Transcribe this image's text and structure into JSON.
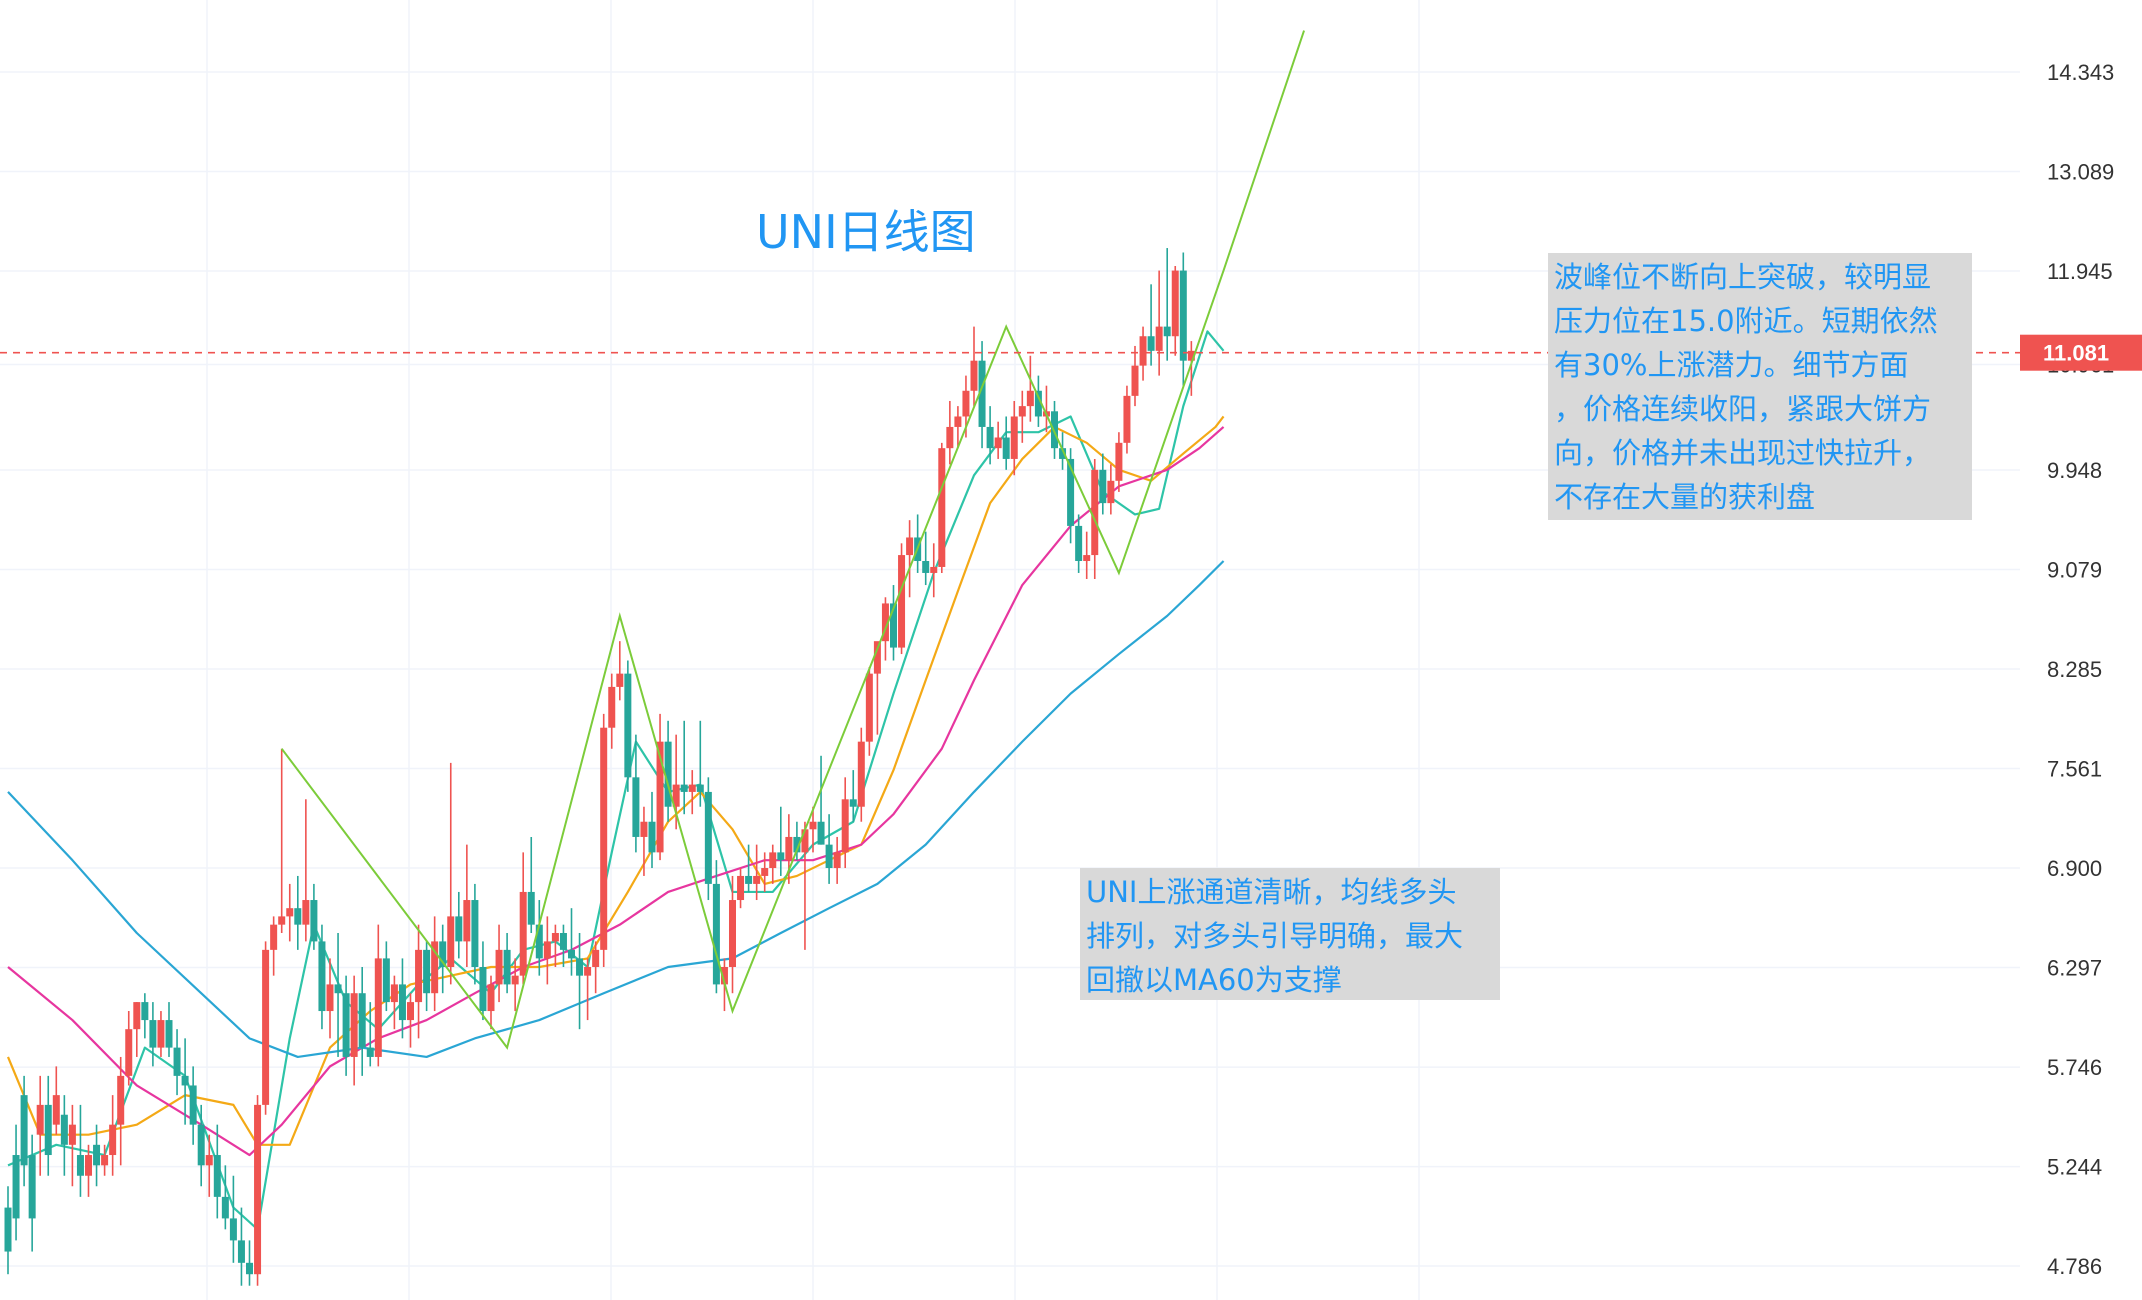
{
  "chart_data": {
    "type": "candlestick",
    "title": "UNI日线图",
    "y_ticks": [
      "14.343",
      "13.089",
      "11.945",
      "10.961",
      "9.948",
      "9.079",
      "8.285",
      "7.561",
      "6.900",
      "6.297",
      "5.746",
      "5.244",
      "4.786"
    ],
    "current_price": "11.081",
    "candles": [
      [
        5.05,
        5.15,
        4.75,
        4.85
      ],
      [
        5.3,
        5.45,
        4.9,
        5.0
      ],
      [
        5.6,
        5.7,
        5.15,
        5.25
      ],
      [
        5.3,
        5.4,
        4.85,
        5.0
      ],
      [
        5.4,
        5.7,
        5.2,
        5.55
      ],
      [
        5.55,
        5.7,
        5.2,
        5.3
      ],
      [
        5.45,
        5.75,
        5.4,
        5.6
      ],
      [
        5.5,
        5.6,
        5.2,
        5.35
      ],
      [
        5.35,
        5.55,
        5.15,
        5.45
      ],
      [
        5.3,
        5.55,
        5.1,
        5.2
      ],
      [
        5.2,
        5.35,
        5.1,
        5.3
      ],
      [
        5.35,
        5.45,
        5.15,
        5.25
      ],
      [
        5.25,
        5.35,
        5.2,
        5.3
      ],
      [
        5.3,
        5.6,
        5.2,
        5.45
      ],
      [
        5.45,
        5.8,
        5.25,
        5.7
      ],
      [
        5.7,
        6.05,
        5.65,
        5.95
      ],
      [
        5.95,
        6.1,
        5.8,
        6.1
      ],
      [
        6.1,
        6.15,
        5.9,
        6.0
      ],
      [
        6.0,
        6.1,
        5.75,
        5.85
      ],
      [
        5.85,
        6.05,
        5.8,
        6.0
      ],
      [
        6.0,
        6.1,
        5.8,
        5.85
      ],
      [
        5.85,
        5.95,
        5.6,
        5.7
      ],
      [
        5.7,
        5.9,
        5.45,
        5.65
      ],
      [
        5.65,
        5.75,
        5.35,
        5.45
      ],
      [
        5.45,
        5.55,
        5.15,
        5.25
      ],
      [
        5.25,
        5.4,
        5.1,
        5.3
      ],
      [
        5.3,
        5.45,
        5.0,
        5.1
      ],
      [
        5.1,
        5.25,
        4.95,
        5.0
      ],
      [
        5.0,
        5.2,
        4.8,
        4.9
      ],
      [
        4.9,
        5.05,
        4.7,
        4.8
      ],
      [
        4.8,
        4.9,
        4.7,
        4.75
      ],
      [
        4.75,
        5.6,
        4.7,
        5.55
      ],
      [
        5.55,
        6.45,
        5.5,
        6.4
      ],
      [
        6.4,
        6.6,
        6.25,
        6.55
      ],
      [
        6.55,
        7.7,
        6.5,
        6.6
      ],
      [
        6.6,
        6.8,
        6.45,
        6.65
      ],
      [
        6.65,
        6.85,
        6.4,
        6.55
      ],
      [
        6.55,
        7.35,
        6.45,
        6.7
      ],
      [
        6.7,
        6.8,
        6.4,
        6.45
      ],
      [
        6.45,
        6.55,
        5.95,
        6.05
      ],
      [
        6.05,
        6.35,
        5.9,
        6.2
      ],
      [
        6.2,
        6.5,
        5.8,
        6.15
      ],
      [
        6.15,
        6.25,
        5.7,
        5.8
      ],
      [
        5.8,
        6.25,
        5.65,
        6.15
      ],
      [
        6.15,
        6.3,
        5.7,
        5.85
      ],
      [
        5.85,
        6.1,
        5.75,
        5.8
      ],
      [
        5.8,
        6.55,
        5.75,
        6.35
      ],
      [
        6.35,
        6.45,
        6.05,
        6.1
      ],
      [
        6.1,
        6.25,
        5.95,
        6.2
      ],
      [
        6.2,
        6.35,
        5.9,
        6.0
      ],
      [
        6.0,
        6.15,
        5.85,
        6.1
      ],
      [
        6.1,
        6.55,
        5.9,
        6.4
      ],
      [
        6.4,
        6.45,
        6.05,
        6.15
      ],
      [
        6.15,
        6.6,
        6.05,
        6.45
      ],
      [
        6.45,
        6.55,
        6.15,
        6.3
      ],
      [
        6.3,
        7.6,
        6.2,
        6.6
      ],
      [
        6.6,
        6.75,
        6.35,
        6.45
      ],
      [
        6.45,
        7.05,
        6.3,
        6.7
      ],
      [
        6.7,
        6.8,
        6.2,
        6.3
      ],
      [
        6.3,
        6.45,
        6.0,
        6.05
      ],
      [
        6.05,
        6.25,
        5.95,
        6.2
      ],
      [
        6.2,
        6.55,
        6.1,
        6.4
      ],
      [
        6.4,
        6.5,
        6.15,
        6.2
      ],
      [
        6.2,
        6.35,
        6.05,
        6.25
      ],
      [
        6.25,
        7.0,
        6.2,
        6.75
      ],
      [
        6.75,
        7.1,
        6.5,
        6.55
      ],
      [
        6.55,
        6.7,
        6.25,
        6.35
      ],
      [
        6.35,
        6.6,
        6.2,
        6.45
      ],
      [
        6.45,
        6.55,
        6.3,
        6.5
      ],
      [
        6.5,
        6.55,
        6.3,
        6.4
      ],
      [
        6.4,
        6.65,
        6.25,
        6.35
      ],
      [
        6.35,
        6.5,
        5.95,
        6.25
      ],
      [
        6.25,
        6.35,
        6.0,
        6.3
      ],
      [
        6.3,
        6.45,
        6.15,
        6.4
      ],
      [
        6.4,
        7.95,
        6.3,
        7.85
      ],
      [
        7.85,
        8.25,
        7.7,
        8.15
      ],
      [
        8.15,
        8.5,
        8.05,
        8.25
      ],
      [
        8.25,
        8.35,
        7.4,
        7.5
      ],
      [
        7.5,
        7.8,
        7.0,
        7.1
      ],
      [
        7.1,
        7.3,
        6.85,
        7.2
      ],
      [
        7.2,
        7.4,
        6.9,
        7.0
      ],
      [
        7.0,
        7.95,
        6.95,
        7.75
      ],
      [
        7.75,
        7.9,
        7.2,
        7.3
      ],
      [
        7.3,
        7.8,
        7.15,
        7.45
      ],
      [
        7.45,
        7.9,
        7.25,
        7.4
      ],
      [
        7.4,
        7.55,
        7.25,
        7.45
      ],
      [
        7.45,
        7.9,
        7.3,
        7.4
      ],
      [
        7.4,
        7.5,
        6.7,
        6.8
      ],
      [
        6.8,
        6.95,
        6.15,
        6.2
      ],
      [
        6.2,
        6.35,
        6.05,
        6.3
      ],
      [
        6.3,
        6.85,
        6.15,
        6.7
      ],
      [
        6.7,
        6.9,
        6.65,
        6.85
      ],
      [
        6.85,
        7.05,
        6.75,
        6.8
      ],
      [
        6.8,
        7.05,
        6.7,
        6.85
      ],
      [
        6.85,
        7.0,
        6.75,
        6.9
      ],
      [
        6.9,
        7.05,
        6.8,
        7.0
      ],
      [
        7.0,
        7.3,
        6.85,
        6.95
      ],
      [
        6.95,
        7.25,
        6.8,
        7.1
      ],
      [
        7.1,
        7.2,
        6.95,
        7.0
      ],
      [
        7.0,
        7.2,
        6.4,
        7.15
      ],
      [
        7.15,
        7.3,
        7.0,
        7.2
      ],
      [
        7.2,
        7.65,
        7.05,
        7.05
      ],
      [
        7.05,
        7.25,
        6.8,
        6.9
      ],
      [
        6.9,
        7.1,
        6.8,
        7.0
      ],
      [
        7.0,
        7.5,
        6.9,
        7.35
      ],
      [
        7.35,
        7.55,
        7.2,
        7.3
      ],
      [
        7.3,
        7.85,
        7.2,
        7.75
      ],
      [
        7.75,
        8.3,
        7.65,
        8.25
      ],
      [
        8.25,
        8.45,
        7.8,
        8.5
      ],
      [
        8.5,
        8.85,
        8.35,
        8.8
      ],
      [
        8.8,
        8.95,
        8.35,
        8.45
      ],
      [
        8.45,
        9.3,
        8.4,
        9.2
      ],
      [
        9.2,
        9.5,
        8.85,
        9.35
      ],
      [
        9.35,
        9.55,
        9.05,
        9.15
      ],
      [
        9.15,
        9.4,
        8.95,
        9.05
      ],
      [
        9.05,
        9.3,
        8.85,
        9.1
      ],
      [
        9.1,
        10.2,
        9.05,
        10.15
      ],
      [
        10.15,
        10.6,
        10.0,
        10.35
      ],
      [
        10.35,
        10.55,
        10.15,
        10.45
      ],
      [
        10.45,
        10.85,
        10.25,
        10.7
      ],
      [
        10.7,
        11.35,
        10.55,
        11.0
      ],
      [
        11.0,
        11.2,
        10.15,
        10.35
      ],
      [
        10.35,
        10.55,
        10.0,
        10.15
      ],
      [
        10.15,
        10.4,
        10.05,
        10.25
      ],
      [
        10.25,
        10.45,
        9.95,
        10.05
      ],
      [
        10.05,
        10.6,
        9.9,
        10.45
      ],
      [
        10.45,
        10.7,
        10.2,
        10.55
      ],
      [
        10.55,
        11.05,
        10.4,
        10.7
      ],
      [
        10.7,
        10.85,
        10.35,
        10.45
      ],
      [
        10.45,
        10.75,
        10.3,
        10.5
      ],
      [
        10.5,
        10.6,
        10.05,
        10.15
      ],
      [
        10.15,
        10.3,
        9.95,
        10.05
      ],
      [
        10.05,
        10.15,
        9.3,
        9.45
      ],
      [
        9.45,
        9.55,
        9.05,
        9.15
      ],
      [
        9.15,
        9.4,
        9.0,
        9.2
      ],
      [
        9.2,
        10.05,
        9.0,
        9.95
      ],
      [
        9.95,
        10.1,
        9.55,
        9.65
      ],
      [
        9.65,
        10.0,
        9.55,
        9.85
      ],
      [
        9.85,
        10.3,
        9.75,
        10.2
      ],
      [
        10.2,
        10.75,
        10.1,
        10.65
      ],
      [
        10.65,
        11.15,
        10.55,
        10.95
      ],
      [
        10.95,
        11.35,
        10.8,
        11.25
      ],
      [
        11.25,
        11.8,
        10.95,
        11.1
      ],
      [
        11.1,
        11.95,
        10.85,
        11.35
      ],
      [
        11.35,
        12.2,
        11.0,
        11.25
      ],
      [
        11.25,
        12.0,
        11.05,
        11.95
      ],
      [
        11.95,
        12.15,
        10.75,
        11.0
      ],
      [
        11.0,
        11.2,
        10.65,
        11.1
      ]
    ],
    "ma_lines": {
      "ma5_teal": [
        [
          0,
          5.25
        ],
        [
          6,
          5.35
        ],
        [
          12,
          5.3
        ],
        [
          17,
          5.85
        ],
        [
          22,
          5.7
        ],
        [
          28,
          5.05
        ],
        [
          31,
          4.95
        ],
        [
          35,
          5.9
        ],
        [
          38,
          6.55
        ],
        [
          42,
          6.1
        ],
        [
          46,
          5.95
        ],
        [
          51,
          6.2
        ],
        [
          55,
          6.35
        ],
        [
          60,
          6.15
        ],
        [
          64,
          6.4
        ],
        [
          68,
          6.45
        ],
        [
          72,
          6.3
        ],
        [
          75,
          7.0
        ],
        [
          78,
          7.75
        ],
        [
          82,
          7.4
        ],
        [
          86,
          7.45
        ],
        [
          90,
          6.75
        ],
        [
          95,
          6.75
        ],
        [
          100,
          7.05
        ],
        [
          105,
          7.2
        ],
        [
          110,
          8.1
        ],
        [
          115,
          9.05
        ],
        [
          120,
          9.9
        ],
        [
          124,
          10.3
        ],
        [
          128,
          10.3
        ],
        [
          132,
          10.45
        ],
        [
          136,
          9.75
        ],
        [
          140,
          9.55
        ],
        [
          143,
          9.6
        ],
        [
          146,
          10.55
        ],
        [
          149,
          11.3
        ],
        [
          151,
          11.1
        ]
      ],
      "ma10_orange": [
        [
          0,
          5.8
        ],
        [
          4,
          5.4
        ],
        [
          10,
          5.4
        ],
        [
          16,
          5.45
        ],
        [
          22,
          5.6
        ],
        [
          28,
          5.55
        ],
        [
          31,
          5.35
        ],
        [
          35,
          5.35
        ],
        [
          40,
          5.85
        ],
        [
          45,
          6.05
        ],
        [
          50,
          6.2
        ],
        [
          55,
          6.25
        ],
        [
          60,
          6.3
        ],
        [
          66,
          6.3
        ],
        [
          72,
          6.35
        ],
        [
          77,
          6.75
        ],
        [
          82,
          7.2
        ],
        [
          86,
          7.4
        ],
        [
          90,
          7.15
        ],
        [
          94,
          6.8
        ],
        [
          98,
          6.85
        ],
        [
          102,
          6.95
        ],
        [
          106,
          7.05
        ],
        [
          110,
          7.55
        ],
        [
          114,
          8.2
        ],
        [
          118,
          8.9
        ],
        [
          122,
          9.65
        ],
        [
          126,
          10.05
        ],
        [
          130,
          10.35
        ],
        [
          134,
          10.2
        ],
        [
          138,
          9.95
        ],
        [
          142,
          9.85
        ],
        [
          146,
          10.1
        ],
        [
          150,
          10.35
        ],
        [
          151,
          10.45
        ]
      ],
      "ma20_magenta": [
        [
          0,
          6.3
        ],
        [
          8,
          6.0
        ],
        [
          16,
          5.65
        ],
        [
          24,
          5.45
        ],
        [
          30,
          5.3
        ],
        [
          34,
          5.45
        ],
        [
          40,
          5.75
        ],
        [
          46,
          5.9
        ],
        [
          52,
          6.0
        ],
        [
          58,
          6.15
        ],
        [
          64,
          6.3
        ],
        [
          70,
          6.4
        ],
        [
          76,
          6.55
        ],
        [
          82,
          6.75
        ],
        [
          88,
          6.85
        ],
        [
          94,
          6.95
        ],
        [
          100,
          6.95
        ],
        [
          106,
          7.05
        ],
        [
          110,
          7.25
        ],
        [
          116,
          7.7
        ],
        [
          120,
          8.2
        ],
        [
          126,
          8.95
        ],
        [
          132,
          9.45
        ],
        [
          138,
          9.8
        ],
        [
          144,
          9.95
        ],
        [
          148,
          10.15
        ],
        [
          151,
          10.35
        ]
      ],
      "ma60_blue": [
        [
          0,
          7.4
        ],
        [
          8,
          6.95
        ],
        [
          16,
          6.5
        ],
        [
          24,
          6.15
        ],
        [
          30,
          5.9
        ],
        [
          36,
          5.8
        ],
        [
          44,
          5.85
        ],
        [
          52,
          5.8
        ],
        [
          58,
          5.9
        ],
        [
          66,
          6.0
        ],
        [
          74,
          6.15
        ],
        [
          82,
          6.3
        ],
        [
          90,
          6.35
        ],
        [
          96,
          6.5
        ],
        [
          102,
          6.65
        ],
        [
          108,
          6.8
        ],
        [
          114,
          7.05
        ],
        [
          120,
          7.4
        ],
        [
          126,
          7.75
        ],
        [
          132,
          8.1
        ],
        [
          138,
          8.4
        ],
        [
          144,
          8.7
        ],
        [
          148,
          8.95
        ],
        [
          151,
          9.15
        ]
      ]
    },
    "trend_lines": [
      [
        [
          34,
          7.7
        ],
        [
          62,
          5.85
        ],
        [
          76,
          8.7
        ],
        [
          90,
          6.05
        ],
        [
          124,
          11.35
        ],
        [
          138,
          9.05
        ],
        [
          151,
          11.95
        ],
        [
          161,
          14.9
        ]
      ]
    ],
    "annotations": {
      "right": [
        "波峰位不断向上突破，较明显",
        "压力位在15.0附近。短期依然",
        "有30%上涨潜力。细节方面",
        "，价格连续收阳，紧跟大饼方",
        "向，价格并未出现过快拉升，",
        "不存在大量的获利盘"
      ],
      "bottom": [
        "UNI上涨通道清晰，均线多头",
        "排列，对多头引导明确，最大",
        "回撤以MA60为支撑"
      ]
    },
    "colors": {
      "up": "#ef5350",
      "down": "#26a69a",
      "ma5": "#2ec4a8",
      "ma10": "#f4a916",
      "ma20": "#e7369f",
      "ma60": "#2aa6d4",
      "trend": "#7ccc3a",
      "price_line": "#ef5350",
      "grid": "#f0f3fa",
      "title": "#2196f3"
    },
    "y_scale": "log",
    "grid": true
  }
}
